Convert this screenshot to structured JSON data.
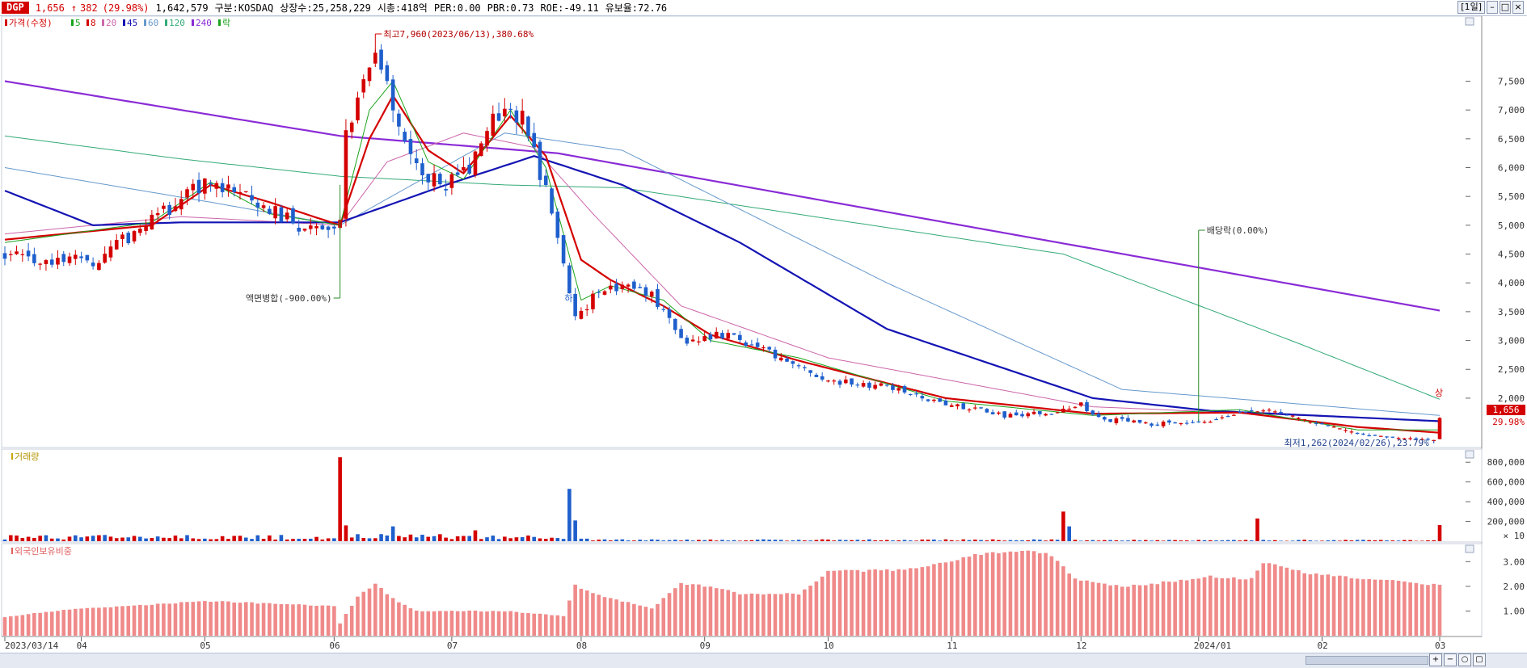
{
  "header": {
    "ticker": "DGP",
    "price": "1,656",
    "change_arrow": "↑",
    "change": "382",
    "change_pct": "(29.98%)",
    "volume": "1,642,579",
    "market": "구분:KOSDAQ",
    "shares": "상장수:25,258,229",
    "mktcap": "시총:418억",
    "per": "PER:0.00",
    "pbr": "PBR:0.73",
    "roe": "ROE:-49.11",
    "reserve": "유보율:72.76",
    "period_btn": "[1일]"
  },
  "legend": {
    "price": "가격(수정)",
    "ma": [
      {
        "label": "5",
        "color": "#1aa31a"
      },
      {
        "label": "8",
        "color": "#d40000"
      },
      {
        "label": "20",
        "color": "#cc66aa"
      },
      {
        "label": "45",
        "color": "#1414b4"
      },
      {
        "label": "60",
        "color": "#6699cc"
      },
      {
        "label": "120",
        "color": "#33aa77"
      },
      {
        "label": "240",
        "color": "#8a2bd6"
      }
    ],
    "drop": "락",
    "volume": "거래량",
    "foreign": "외국인보유비중"
  },
  "annotations": {
    "high": "최고7,960(2023/06/13),380.68%",
    "low": "최저1,262(2024/02/26),23.79%",
    "split": "액면병합(-900.00%)",
    "dividend": "배당락(0.00%)",
    "limit_down": "하",
    "limit_up": "상",
    "cur_price": "1,656",
    "cur_pct": "29.98%",
    "vol_unit": "× 10"
  },
  "colors": {
    "up": "#d40000",
    "down": "#1f5fcc",
    "foreign_bar": "#f08a8a"
  },
  "chart_data": [
    {
      "type": "line",
      "title": "",
      "y_ticks": [
        2000,
        2500,
        3000,
        3500,
        4000,
        4500,
        5000,
        5500,
        6000,
        6500,
        7000,
        7500
      ],
      "y_tick_labels": [
        "2,000",
        "2,500",
        "3,000",
        "3,500",
        "4,000",
        "4,500",
        "5,000",
        "5,500",
        "6,000",
        "6,500",
        "7,000",
        "7,500"
      ],
      "ylim": [
        1200,
        8600
      ],
      "x_labels": [
        "2023/03/14",
        "04",
        "05",
        "06",
        "07",
        "08",
        "09",
        "10",
        "11",
        "12",
        "2024/01",
        "02",
        "03"
      ],
      "price_path": [
        {
          "i": 0,
          "c": 4500
        },
        {
          "i": 15,
          "c": 4350
        },
        {
          "i": 25,
          "c": 5100
        },
        {
          "i": 35,
          "c": 5800
        },
        {
          "i": 45,
          "c": 5300
        },
        {
          "i": 52,
          "c": 4900
        },
        {
          "i": 57,
          "c": 5000
        },
        {
          "i": 58,
          "c": 6600
        },
        {
          "i": 63,
          "c": 7900
        },
        {
          "i": 70,
          "c": 6000
        },
        {
          "i": 75,
          "c": 5700
        },
        {
          "i": 79,
          "c": 6000
        },
        {
          "i": 83,
          "c": 7000
        },
        {
          "i": 88,
          "c": 6900
        },
        {
          "i": 92,
          "c": 5600
        },
        {
          "i": 97,
          "c": 3400
        },
        {
          "i": 102,
          "c": 3950
        },
        {
          "i": 110,
          "c": 3800
        },
        {
          "i": 115,
          "c": 3000
        },
        {
          "i": 123,
          "c": 3100
        },
        {
          "i": 130,
          "c": 2800
        },
        {
          "i": 140,
          "c": 2300
        },
        {
          "i": 150,
          "c": 2200
        },
        {
          "i": 160,
          "c": 1900
        },
        {
          "i": 170,
          "c": 1700
        },
        {
          "i": 180,
          "c": 1780
        },
        {
          "i": 183,
          "c": 1900
        },
        {
          "i": 186,
          "c": 1650
        },
        {
          "i": 195,
          "c": 1550
        },
        {
          "i": 205,
          "c": 1600
        },
        {
          "i": 210,
          "c": 1750
        },
        {
          "i": 215,
          "c": 1800
        },
        {
          "i": 222,
          "c": 1600
        },
        {
          "i": 232,
          "c": 1350
        },
        {
          "i": 243,
          "c": 1274
        },
        {
          "i": 244,
          "c": 1656
        }
      ],
      "ma_paths": {
        "ma240": [
          [
            0,
            7500
          ],
          [
            57,
            6550
          ],
          [
            94,
            6250
          ],
          [
            244,
            3520
          ]
        ],
        "ma120": [
          [
            0,
            6550
          ],
          [
            30,
            6150
          ],
          [
            57,
            5850
          ],
          [
            85,
            5700
          ],
          [
            105,
            5650
          ],
          [
            180,
            4500
          ],
          [
            220,
            2950
          ],
          [
            244,
            1980
          ]
        ],
        "ma60": [
          [
            0,
            6000
          ],
          [
            35,
            5400
          ],
          [
            57,
            5000
          ],
          [
            85,
            6600
          ],
          [
            105,
            6300
          ],
          [
            150,
            4000
          ],
          [
            190,
            2150
          ],
          [
            244,
            1700
          ]
        ],
        "ma45": [
          [
            0,
            5600
          ],
          [
            15,
            5000
          ],
          [
            30,
            5050
          ],
          [
            57,
            5050
          ],
          [
            75,
            5700
          ],
          [
            90,
            6200
          ],
          [
            105,
            5700
          ],
          [
            125,
            4700
          ],
          [
            150,
            3200
          ],
          [
            185,
            2000
          ],
          [
            205,
            1780
          ],
          [
            244,
            1600
          ]
        ],
        "ma20": [
          [
            0,
            4850
          ],
          [
            30,
            5150
          ],
          [
            57,
            5000
          ],
          [
            65,
            6100
          ],
          [
            78,
            6600
          ],
          [
            90,
            6350
          ],
          [
            100,
            5200
          ],
          [
            115,
            3600
          ],
          [
            140,
            2700
          ],
          [
            185,
            1850
          ],
          [
            244,
            1600
          ]
        ],
        "ma8": [
          [
            0,
            4750
          ],
          [
            25,
            5000
          ],
          [
            35,
            5700
          ],
          [
            45,
            5400
          ],
          [
            57,
            5000
          ],
          [
            62,
            6500
          ],
          [
            66,
            7250
          ],
          [
            72,
            6300
          ],
          [
            78,
            5900
          ],
          [
            86,
            6900
          ],
          [
            92,
            6200
          ],
          [
            98,
            4400
          ],
          [
            103,
            4050
          ],
          [
            112,
            3600
          ],
          [
            120,
            3100
          ],
          [
            135,
            2650
          ],
          [
            160,
            2000
          ],
          [
            185,
            1730
          ],
          [
            210,
            1750
          ],
          [
            230,
            1500
          ],
          [
            244,
            1400
          ]
        ],
        "ma5": [
          [
            0,
            4700
          ],
          [
            25,
            5050
          ],
          [
            35,
            5750
          ],
          [
            45,
            5200
          ],
          [
            57,
            5000
          ],
          [
            62,
            7000
          ],
          [
            66,
            7500
          ],
          [
            72,
            6100
          ],
          [
            78,
            5800
          ],
          [
            86,
            7000
          ],
          [
            92,
            6000
          ],
          [
            98,
            3700
          ],
          [
            103,
            3950
          ],
          [
            112,
            3700
          ],
          [
            120,
            3000
          ],
          [
            135,
            2700
          ],
          [
            160,
            1950
          ],
          [
            185,
            1700
          ],
          [
            210,
            1800
          ],
          [
            230,
            1450
          ],
          [
            244,
            1450
          ]
        ]
      }
    },
    {
      "type": "bar",
      "title": "",
      "y_ticks": [
        200000,
        400000,
        600000,
        800000
      ],
      "y_tick_labels": [
        "200,000",
        "400,000",
        "600,000",
        "800,000"
      ],
      "ylim": [
        0,
        900000
      ],
      "spikes": [
        {
          "i": 57,
          "v": 850000,
          "up": true
        },
        {
          "i": 58,
          "v": 160000,
          "up": true
        },
        {
          "i": 66,
          "v": 150000,
          "up": false
        },
        {
          "i": 80,
          "v": 110000,
          "up": true
        },
        {
          "i": 96,
          "v": 530000,
          "up": false
        },
        {
          "i": 97,
          "v": 210000,
          "up": false
        },
        {
          "i": 180,
          "v": 300000,
          "up": true
        },
        {
          "i": 181,
          "v": 150000,
          "up": false
        },
        {
          "i": 213,
          "v": 230000,
          "up": true
        },
        {
          "i": 244,
          "v": 164000,
          "up": true
        }
      ]
    },
    {
      "type": "bar",
      "title": "",
      "y_ticks": [
        1.0,
        2.0,
        3.0
      ],
      "y_tick_labels": [
        "1.00",
        "2.00",
        "3.00"
      ],
      "ylim": [
        0,
        3.6
      ],
      "path": [
        [
          0,
          0.75
        ],
        [
          10,
          1.05
        ],
        [
          20,
          1.2
        ],
        [
          35,
          1.4
        ],
        [
          56,
          1.2
        ],
        [
          57,
          0.5
        ],
        [
          60,
          1.6
        ],
        [
          63,
          2.1
        ],
        [
          66,
          1.5
        ],
        [
          70,
          1.0
        ],
        [
          85,
          1.0
        ],
        [
          95,
          0.8
        ],
        [
          97,
          2.05
        ],
        [
          100,
          1.7
        ],
        [
          110,
          1.1
        ],
        [
          115,
          2.1
        ],
        [
          120,
          2.0
        ],
        [
          125,
          1.7
        ],
        [
          135,
          1.7
        ],
        [
          140,
          2.6
        ],
        [
          155,
          2.7
        ],
        [
          165,
          3.3
        ],
        [
          175,
          3.4
        ],
        [
          178,
          3.25
        ],
        [
          182,
          2.3
        ],
        [
          190,
          2.0
        ],
        [
          195,
          2.1
        ],
        [
          205,
          2.4
        ],
        [
          212,
          2.3
        ],
        [
          214,
          2.95
        ],
        [
          222,
          2.5
        ],
        [
          244,
          2.05
        ]
      ]
    }
  ]
}
